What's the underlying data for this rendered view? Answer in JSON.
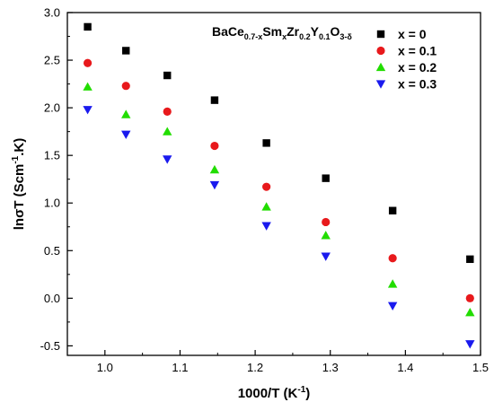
{
  "chart_data": {
    "type": "scatter",
    "xlabel": "1000/T (K",
    "xlabel_sup": "-1",
    "xlabel_end": ")",
    "ylabel": "lnσT (Scm",
    "ylabel_sup": "-1",
    "ylabel_end": ".K)",
    "xlim": [
      0.95,
      1.5
    ],
    "ylim": [
      -0.6,
      3.0
    ],
    "x_ticks": [
      "1.0",
      "1.1",
      "1.2",
      "1.3",
      "1.4",
      "1.5"
    ],
    "x_tick_values": [
      1.0,
      1.1,
      1.2,
      1.3,
      1.4,
      1.5
    ],
    "y_ticks": [
      "-0.5",
      "0.0",
      "0.5",
      "1.0",
      "1.5",
      "2.0",
      "2.5",
      "3.0"
    ],
    "y_tick_values": [
      -0.5,
      0.0,
      0.5,
      1.0,
      1.5,
      2.0,
      2.5,
      3.0
    ],
    "grid": false,
    "legend_position": "top-right",
    "annotation": {
      "parts": [
        {
          "text": "BaCe",
          "style": "normal"
        },
        {
          "text": "0.7-x",
          "style": "sub"
        },
        {
          "text": "Sm",
          "style": "normal"
        },
        {
          "text": "x",
          "style": "sub"
        },
        {
          "text": "Zr",
          "style": "normal"
        },
        {
          "text": "0.2",
          "style": "sub"
        },
        {
          "text": "Y",
          "style": "normal"
        },
        {
          "text": "0.1",
          "style": "sub"
        },
        {
          "text": "O",
          "style": "normal"
        },
        {
          "text": "3-δ",
          "style": "sub"
        }
      ]
    },
    "series": [
      {
        "name": "x = 0",
        "marker": "square",
        "color": "#000000",
        "x": [
          0.977,
          1.028,
          1.083,
          1.146,
          1.215,
          1.294,
          1.383,
          1.486
        ],
        "y": [
          2.85,
          2.6,
          2.34,
          2.08,
          1.63,
          1.26,
          0.92,
          0.41
        ]
      },
      {
        "name": "x = 0.1",
        "marker": "circle",
        "color": "#e8191c",
        "x": [
          0.977,
          1.028,
          1.083,
          1.146,
          1.215,
          1.294,
          1.383,
          1.486
        ],
        "y": [
          2.47,
          2.23,
          1.96,
          1.6,
          1.17,
          0.8,
          0.42,
          0.0
        ]
      },
      {
        "name": "x = 0.2",
        "marker": "triangle-up",
        "color": "#22dd00",
        "x": [
          0.977,
          1.028,
          1.083,
          1.146,
          1.215,
          1.294,
          1.383,
          1.486
        ],
        "y": [
          2.22,
          1.93,
          1.75,
          1.35,
          0.96,
          0.66,
          0.15,
          -0.15
        ]
      },
      {
        "name": "x = 0.3",
        "marker": "triangle-down",
        "color": "#1a1aee",
        "x": [
          0.977,
          1.028,
          1.083,
          1.146,
          1.215,
          1.294,
          1.383,
          1.486
        ],
        "y": [
          1.98,
          1.72,
          1.46,
          1.19,
          0.76,
          0.44,
          -0.08,
          -0.48
        ]
      }
    ]
  }
}
